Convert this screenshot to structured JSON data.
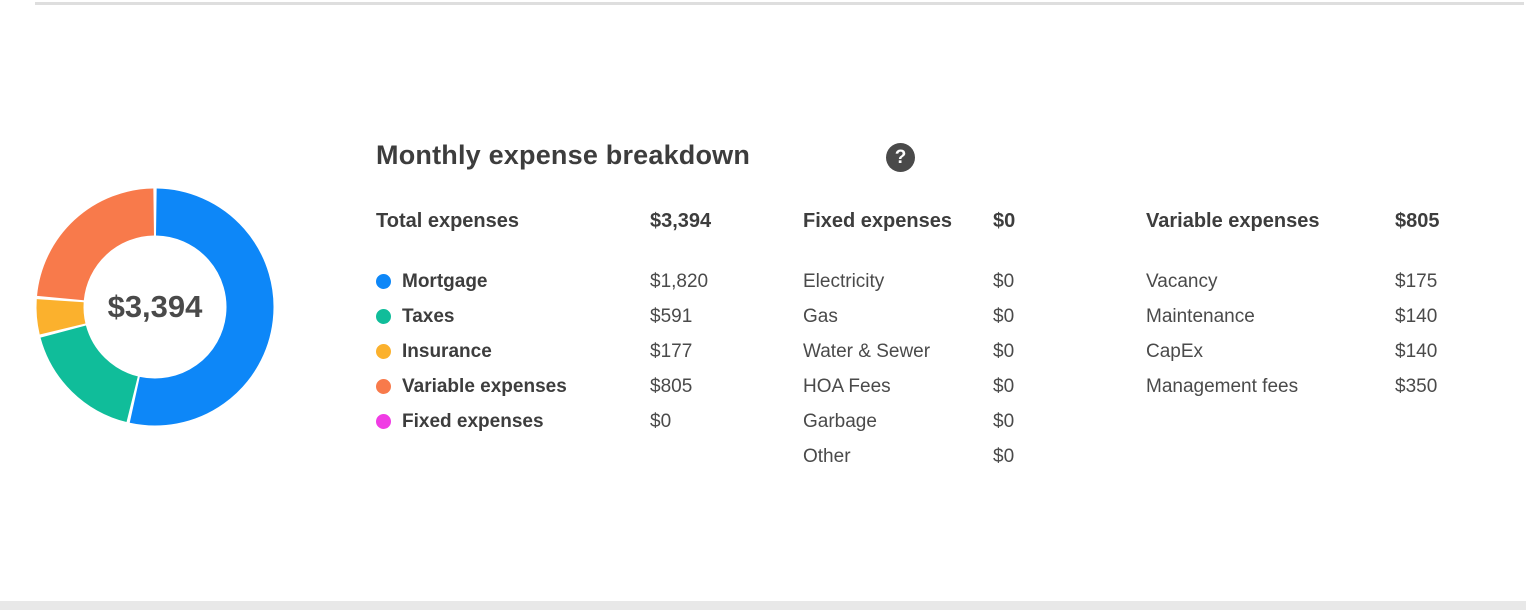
{
  "title": "Monthly expense breakdown",
  "help": {
    "glyph": "?"
  },
  "chart_data": {
    "type": "pie",
    "subtype": "donut",
    "title": "Monthly expense breakdown",
    "center_label": "$3,394",
    "total": 3394,
    "start_angle_deg": 0,
    "direction": "clockwise",
    "segments": [
      {
        "label": "Mortgage",
        "value": 1820,
        "color": "#0d87f8"
      },
      {
        "label": "Taxes",
        "value": 591,
        "color": "#10bd9a"
      },
      {
        "label": "Insurance",
        "value": 177,
        "color": "#fbb12d"
      },
      {
        "label": "Variable expenses",
        "value": 805,
        "color": "#f87a4b"
      },
      {
        "label": "Fixed expenses",
        "value": 0,
        "color": "#f03ce4"
      }
    ]
  },
  "columns": [
    {
      "header": {
        "label": "Total expenses",
        "value": "$3,394"
      },
      "rows": [
        {
          "label": "Mortgage",
          "value": "$1,820",
          "dot": "#0d87f8",
          "bold": true
        },
        {
          "label": "Taxes",
          "value": "$591",
          "dot": "#10bd9a",
          "bold": true
        },
        {
          "label": "Insurance",
          "value": "$177",
          "dot": "#fbb12d",
          "bold": true
        },
        {
          "label": "Variable expenses",
          "value": "$805",
          "dot": "#f87a4b",
          "bold": true
        },
        {
          "label": "Fixed expenses",
          "value": "$0",
          "dot": "#f03ce4",
          "bold": true
        }
      ]
    },
    {
      "header": {
        "label": "Fixed expenses",
        "value": "$0"
      },
      "rows": [
        {
          "label": "Electricity",
          "value": "$0"
        },
        {
          "label": "Gas",
          "value": "$0"
        },
        {
          "label": "Water & Sewer",
          "value": "$0"
        },
        {
          "label": "HOA Fees",
          "value": "$0"
        },
        {
          "label": "Garbage",
          "value": "$0"
        },
        {
          "label": "Other",
          "value": "$0"
        }
      ]
    },
    {
      "header": {
        "label": "Variable expenses",
        "value": "$805"
      },
      "rows": [
        {
          "label": "Vacancy",
          "value": "$175"
        },
        {
          "label": "Maintenance",
          "value": "$140"
        },
        {
          "label": "CapEx",
          "value": "$140"
        },
        {
          "label": "Management fees",
          "value": "$350"
        }
      ]
    }
  ],
  "colors": {
    "text": "#4a4a4a",
    "heading": "#3d3d3d",
    "top_border": "#dedede",
    "bottom_strip": "#e8e8e8",
    "help_circle": "#4a4a4a"
  }
}
